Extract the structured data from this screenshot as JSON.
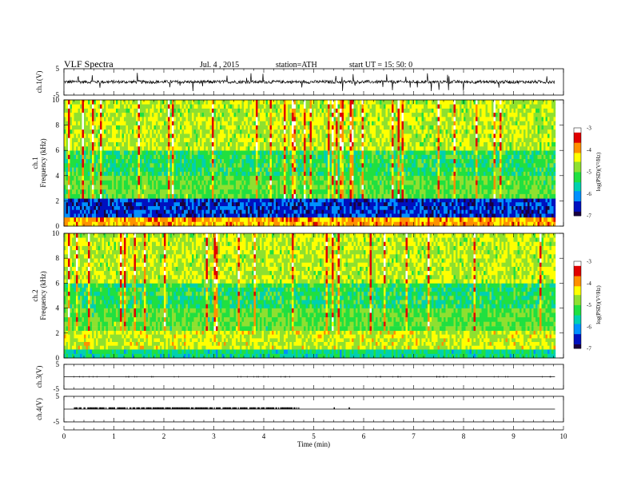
{
  "header": {
    "title": "VLF Spectra",
    "date": "Jul. 4 , 2015",
    "station": "station=ATH",
    "start": "start UT = 15: 50: 0"
  },
  "colors": {
    "spectrum_scale": [
      "#1a0040",
      "#0010c0",
      "#0090ff",
      "#00d0b0",
      "#20e040",
      "#8ee030",
      "#ffff00",
      "#ff9000",
      "#e00000",
      "#ffffff"
    ],
    "waveform": "#000000"
  },
  "chart_data": [
    {
      "type": "line",
      "panel": "ch1-waveform",
      "ylabel": "ch.1(V)",
      "yticks": [
        "5",
        "-5"
      ],
      "ylim": [
        -5,
        5
      ],
      "xlim": [
        0,
        10
      ],
      "data_end_min": 9.83,
      "baseline": 0,
      "noise_amplitude": 0.6,
      "spike_max": 3.5
    },
    {
      "type": "heatmap",
      "panel": "ch1-spectrogram",
      "ylabel": "ch.1\nFrequency (kHz)",
      "ylabel_lines": [
        "ch.1",
        "Frequency (kHz)"
      ],
      "yticks": [
        "0",
        "2",
        "4",
        "6",
        "8",
        "10"
      ],
      "ylim": [
        0,
        10
      ],
      "xlim": [
        0,
        10
      ],
      "data_end_min": 9.83,
      "colorbar": {
        "label": "log(PSD)(V²/Hz)",
        "range": [
          -7,
          -3
        ],
        "ticks": [
          "-3",
          "-4",
          "-5",
          "-6",
          "-7"
        ]
      },
      "bands": [
        {
          "f_khz": [
            0,
            0.7
          ],
          "logpsd": -4.0
        },
        {
          "f_khz": [
            0.7,
            2.2
          ],
          "logpsd": -6.5
        },
        {
          "f_khz": [
            2.2,
            4.0
          ],
          "logpsd": -5.0
        },
        {
          "f_khz": [
            4.0,
            6.0
          ],
          "logpsd": -5.3
        },
        {
          "f_khz": [
            6.0,
            10.0
          ],
          "logpsd": -4.6
        }
      ]
    },
    {
      "type": "heatmap",
      "panel": "ch2-spectrogram",
      "ylabel": "ch.2\nFrequency (kHz)",
      "ylabel_lines": [
        "ch.2",
        "Frequency (kHz)"
      ],
      "yticks": [
        "0",
        "2",
        "4",
        "6",
        "8",
        "10"
      ],
      "ylim": [
        0,
        10
      ],
      "xlim": [
        0,
        10
      ],
      "data_end_min": 9.83,
      "colorbar": {
        "label": "log(PSD)(V²/Hz)",
        "range": [
          -7,
          -3
        ],
        "ticks": [
          "-3",
          "-4",
          "-5",
          "-6",
          "-7"
        ]
      },
      "bands": [
        {
          "f_khz": [
            0,
            0.7
          ],
          "logpsd": -5.5
        },
        {
          "f_khz": [
            0.7,
            2.2
          ],
          "logpsd": -4.5
        },
        {
          "f_khz": [
            2.2,
            4.0
          ],
          "logpsd": -5.0
        },
        {
          "f_khz": [
            4.0,
            6.0
          ],
          "logpsd": -5.3
        },
        {
          "f_khz": [
            6.0,
            10.0
          ],
          "logpsd": -4.6
        }
      ]
    },
    {
      "type": "line",
      "panel": "ch3-waveform",
      "ylabel": "ch.3(V)",
      "yticks": [
        "5",
        "-5"
      ],
      "ylim": [
        -5,
        5
      ],
      "xlim": [
        0,
        10
      ],
      "data_end_min": 9.83,
      "baseline": 0,
      "noise_amplitude": 0.05
    },
    {
      "type": "line",
      "panel": "ch4-waveform",
      "ylabel": "ch.4(V)",
      "yticks": [
        "5",
        "-5"
      ],
      "ylim": [
        -5,
        5
      ],
      "xlim": [
        0,
        10
      ],
      "data_end_min": 9.83,
      "baseline": 0,
      "pulse_segment_min": [
        0.2,
        4.7
      ],
      "pulse_level": 0.3,
      "isolated_pulses_min": [
        5.4,
        5.7
      ]
    }
  ],
  "xaxis": {
    "label": "Time (min)",
    "ticks": [
      "0",
      "1",
      "2",
      "3",
      "4",
      "5",
      "6",
      "7",
      "8",
      "9",
      "10"
    ],
    "range": [
      0,
      10
    ]
  }
}
